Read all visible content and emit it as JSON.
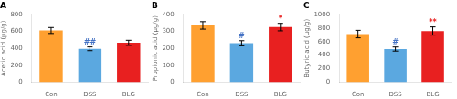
{
  "chart_data": [
    {
      "type": "bar",
      "title": "A",
      "ylabel": "Acetic acid (μg/g)",
      "categories": [
        "Con",
        "DSS",
        "BLG"
      ],
      "values": [
        610,
        395,
        465
      ],
      "errors": [
        35,
        22,
        30
      ],
      "colors": [
        "#FFA030",
        "#5BA8E0",
        "#E82020"
      ],
      "ylim": [
        0,
        800
      ],
      "yticks": [
        0,
        200,
        400,
        600,
        800
      ],
      "grid": false,
      "annotations": [
        {
          "text": "##",
          "category": "DSS",
          "color": "#4472C4"
        }
      ]
    },
    {
      "type": "bar",
      "title": "B",
      "ylabel": "Propionic acid (μg/g)",
      "categories": [
        "Con",
        "DSS",
        "BLG"
      ],
      "values": [
        335,
        230,
        325
      ],
      "errors": [
        22,
        15,
        22
      ],
      "colors": [
        "#FFA030",
        "#5BA8E0",
        "#E82020"
      ],
      "ylim": [
        0,
        400
      ],
      "yticks": [
        0,
        100,
        200,
        300,
        400
      ],
      "grid": false,
      "annotations": [
        {
          "text": "#",
          "category": "DSS",
          "color": "#4472C4"
        },
        {
          "text": "*",
          "category": "BLG",
          "color": "#E82020"
        }
      ]
    },
    {
      "type": "bar",
      "title": "C",
      "ylabel": "Butyric acid (μg/g)",
      "categories": [
        "Con",
        "DSS",
        "BLG"
      ],
      "values": [
        710,
        490,
        755
      ],
      "errors": [
        55,
        30,
        60
      ],
      "colors": [
        "#FFA030",
        "#5BA8E0",
        "#E82020"
      ],
      "ylim": [
        0,
        1000
      ],
      "yticks": [
        0,
        200,
        400,
        600,
        800,
        1000
      ],
      "grid": false,
      "annotations": [
        {
          "text": "#",
          "category": "DSS",
          "color": "#4472C4"
        },
        {
          "text": "**",
          "category": "BLG",
          "color": "#E82020"
        }
      ]
    }
  ]
}
